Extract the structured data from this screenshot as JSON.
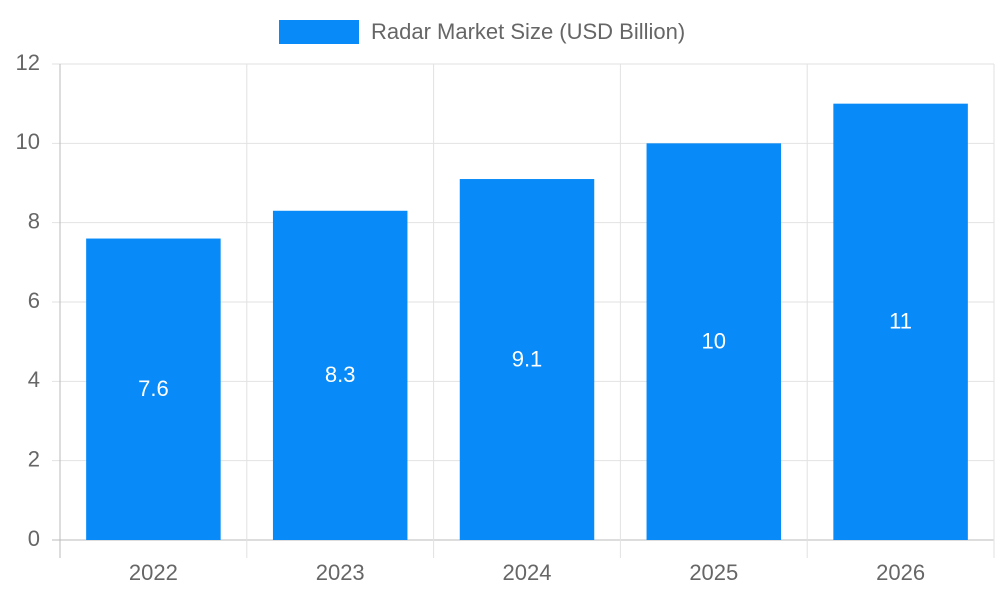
{
  "chart_data": {
    "type": "bar",
    "categories": [
      "2022",
      "2023",
      "2024",
      "2025",
      "2026"
    ],
    "series": [
      {
        "name": "Radar Market Size (USD Billion)",
        "color": "#088bf8",
        "values": [
          7.6,
          8.3,
          9.1,
          10,
          11
        ]
      }
    ],
    "ylim": [
      0,
      12
    ],
    "yticks": [
      0,
      2,
      4,
      6,
      8,
      10,
      12
    ],
    "grid": true,
    "legend": "top"
  }
}
